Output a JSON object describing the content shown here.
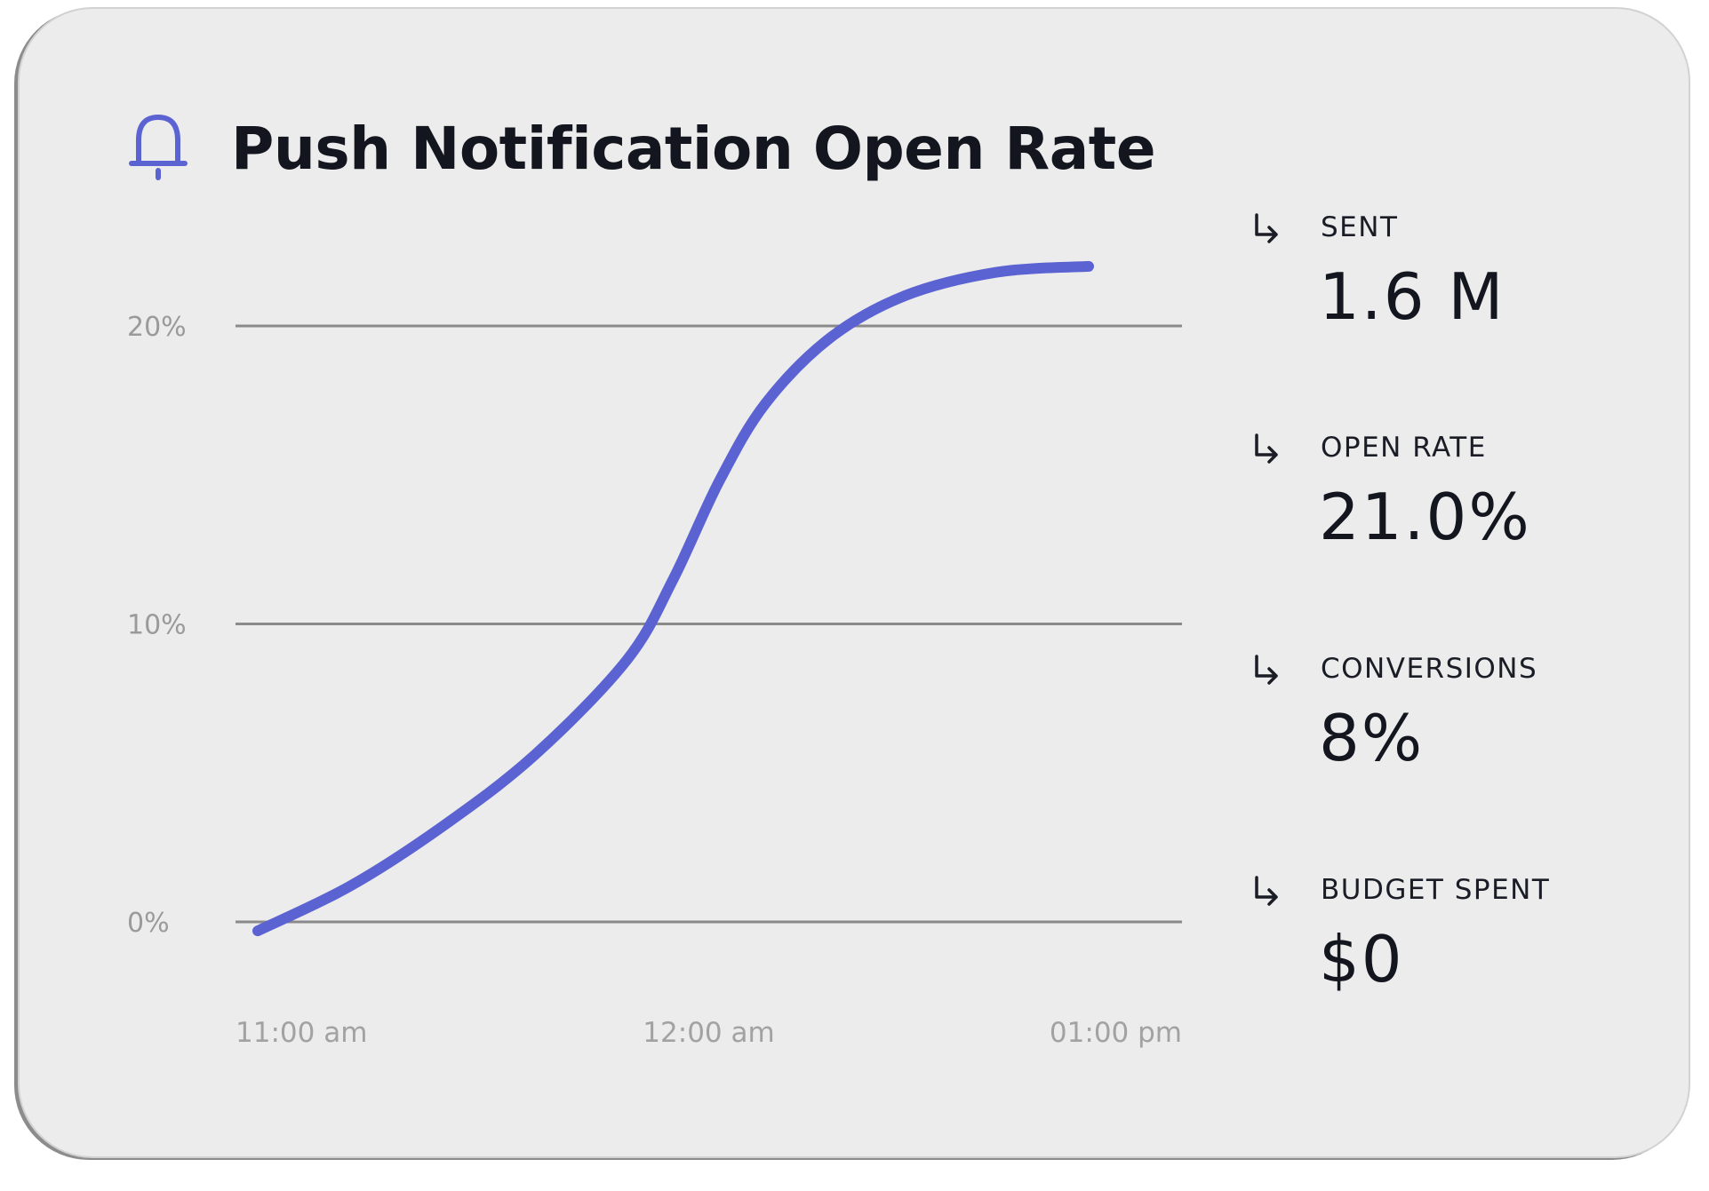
{
  "card": {
    "title": "Push Notification Open Rate",
    "title_icon": "bell-icon",
    "accent_color": "#5b63d3"
  },
  "chart_data": {
    "type": "line",
    "title": "Push Notification Open Rate",
    "x": [
      "11:00 am",
      "12:00 am",
      "01:00 pm"
    ],
    "ylim": [
      0,
      20
    ],
    "yticks": [
      "0%",
      "10%",
      "20%"
    ],
    "grid": true,
    "series": [
      {
        "color": "#5b63d3",
        "points": [
          [
            0.0,
            -0.3
          ],
          [
            0.1,
            1.2
          ],
          [
            0.2,
            3.2
          ],
          [
            0.3,
            5.6
          ],
          [
            0.4,
            8.8
          ],
          [
            0.45,
            11.5
          ],
          [
            0.5,
            14.8
          ],
          [
            0.55,
            17.4
          ],
          [
            0.62,
            19.6
          ],
          [
            0.7,
            21.0
          ],
          [
            0.8,
            21.8
          ],
          [
            0.9,
            22.0
          ]
        ]
      }
    ]
  },
  "stats": [
    {
      "label": "SENT",
      "value": "1.6 M",
      "icon": "arrow-return-icon"
    },
    {
      "label": "OPEN RATE",
      "value": "21.0%",
      "icon": "arrow-return-icon"
    },
    {
      "label": "CONVERSIONS",
      "value": "8%",
      "icon": "arrow-return-icon"
    },
    {
      "label": "BUDGET SPENT",
      "value": "$0",
      "icon": "arrow-return-icon"
    }
  ]
}
